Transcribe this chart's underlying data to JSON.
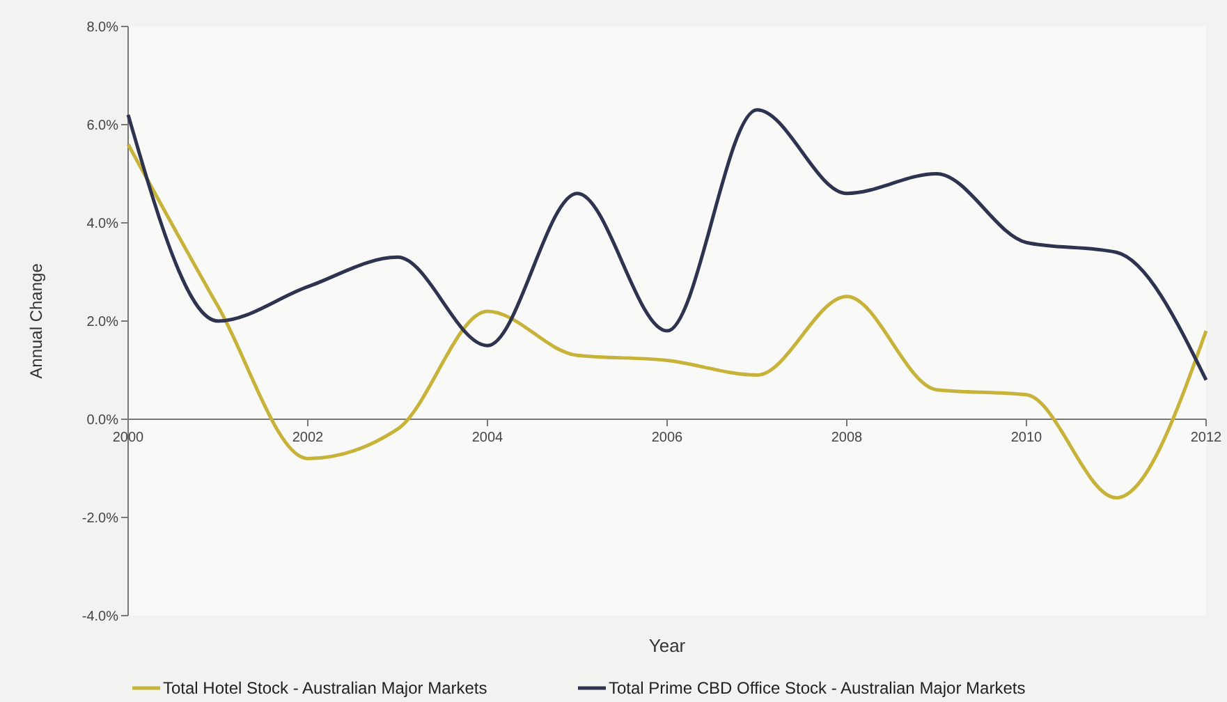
{
  "chart_data": {
    "type": "line",
    "xlabel": "Year",
    "ylabel": "Annual Change",
    "x": [
      2000,
      2001,
      2002,
      2003,
      2004,
      2005,
      2006,
      2007,
      2008,
      2009,
      2010,
      2011,
      2012
    ],
    "xlim": [
      2000,
      2012
    ],
    "xticks": [
      2000,
      2002,
      2004,
      2006,
      2008,
      2010,
      2012
    ],
    "ylim": [
      -4,
      8
    ],
    "yticks": [
      {
        "value": -4,
        "label": "-4.0%"
      },
      {
        "value": -2,
        "label": "-2.0%"
      },
      {
        "value": 0,
        "label": "0.0%"
      },
      {
        "value": 2,
        "label": "2.0%"
      },
      {
        "value": 4,
        "label": "4.0%"
      },
      {
        "value": 6,
        "label": "6.0%"
      },
      {
        "value": 8,
        "label": "8.0%"
      }
    ],
    "grid": false,
    "legend": "bottom",
    "marker": "none",
    "line_style": "solid",
    "series": [
      {
        "name": "Total Hotel Stock - Australian Major Markets",
        "color": "#c8b33a",
        "values": [
          5.6,
          2.3,
          -0.8,
          -0.2,
          2.2,
          1.3,
          1.2,
          0.9,
          2.5,
          0.6,
          0.5,
          -1.6,
          1.8
        ]
      },
      {
        "name": "Total Prime  CBD Office Stock - Australian Major Markets",
        "color": "#2e3450",
        "values": [
          6.2,
          2.0,
          2.7,
          3.3,
          1.5,
          4.6,
          1.8,
          6.3,
          4.6,
          5.0,
          3.6,
          3.4,
          0.8
        ]
      }
    ]
  }
}
